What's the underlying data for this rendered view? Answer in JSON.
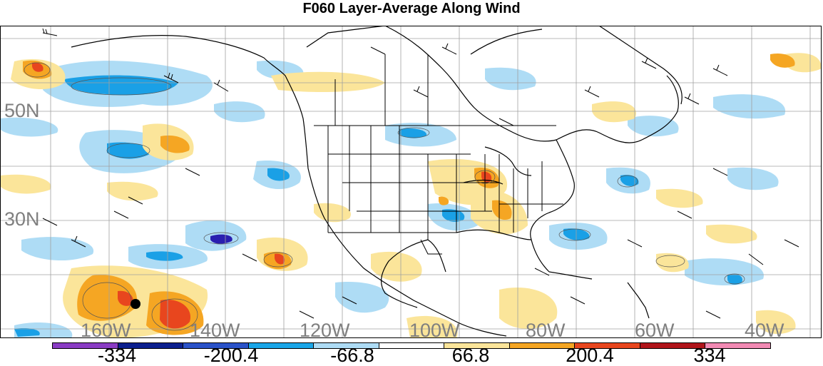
{
  "title": "F060 Layer-Average Along Wind",
  "map": {
    "lat_labels": [
      "50N",
      "30N"
    ],
    "lon_labels": [
      "160W",
      "140W",
      "120W",
      "100W",
      "80W",
      "60W",
      "40W"
    ],
    "palette": {
      "neg_strong": "#2a1fb0",
      "neg_mid": "#1aa0e6",
      "neg_light": "#aedcf5",
      "pos_light": "#fbe59a",
      "pos_mid": "#f5a623",
      "pos_strong": "#e8461e",
      "pos_max": "#c0171a"
    },
    "marker": "station-dot"
  },
  "colorbar": {
    "labels": [
      "-334",
      "-200.4",
      "-66.8",
      "66.8",
      "200.4",
      "334"
    ],
    "colors": [
      "#8a3cc4",
      "#0b1f8e",
      "#2a52c8",
      "#1aa6e8",
      "#aedcf5",
      "#ffffff",
      "#fbe59a",
      "#f5a623",
      "#e8461e",
      "#b0141a",
      "#f28ab4"
    ]
  }
}
